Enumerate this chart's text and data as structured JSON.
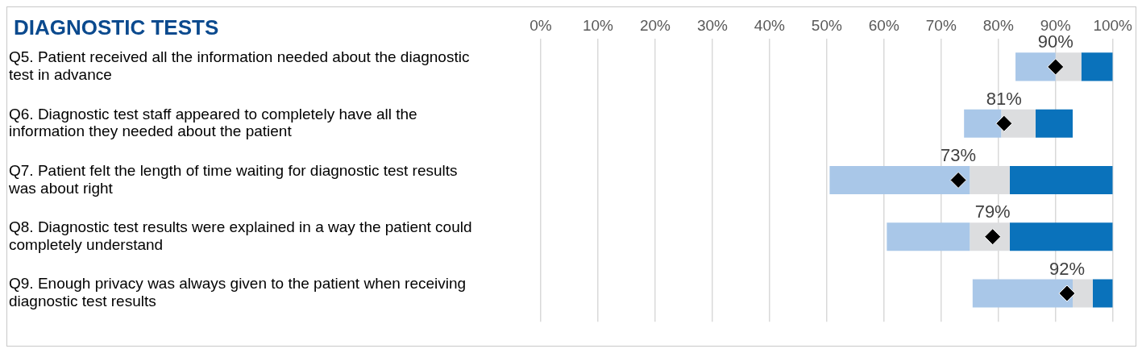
{
  "chart_data": {
    "type": "bar",
    "orientation": "horizontal",
    "title": "DIAGNOSTIC TESTS",
    "categories": [
      "Q5. Patient received all the information needed about the diagnostic test in advance",
      "Q6. Diagnostic test staff appeared to completely have all the information they needed about the patient",
      "Q7. Patient felt the length of time waiting for diagnostic test results was about right",
      "Q8. Diagnostic test results were explained in a way the patient could completely understand",
      "Q9. Enough privacy was always given to the patient when receiving diagnostic test results"
    ],
    "series": [
      {
        "color": "#a9c7e8",
        "base": [
          83,
          74,
          50.5,
          60.5,
          75.5
        ],
        "values": [
          7,
          6.5,
          24.5,
          14.5,
          17.5
        ]
      },
      {
        "color": "#dcdddf",
        "base": [
          90,
          80.5,
          75,
          75,
          93
        ],
        "values": [
          4.5,
          6,
          7,
          7,
          3.5
        ]
      },
      {
        "color": "#0a72bb",
        "base": [
          94.5,
          86.5,
          82,
          82,
          96.5
        ],
        "values": [
          5.5,
          6.5,
          18,
          18,
          3.5
        ]
      },
      {
        "type": "scatter",
        "color": "#000000",
        "marker": "diamond",
        "values": [
          90,
          81,
          73,
          79,
          92
        ],
        "value_labels": [
          "90%",
          "81%",
          "73%",
          "79%",
          "92%"
        ]
      }
    ],
    "xlim": [
      0,
      100
    ],
    "xticks": [
      {
        "value": 0,
        "label": "0%"
      },
      {
        "value": 10,
        "label": "10%"
      },
      {
        "value": 20,
        "label": "20%"
      },
      {
        "value": 30,
        "label": "30%"
      },
      {
        "value": 40,
        "label": "40%"
      },
      {
        "value": 50,
        "label": "50%"
      },
      {
        "value": 60,
        "label": "60%"
      },
      {
        "value": 70,
        "label": "70%"
      },
      {
        "value": 80,
        "label": "80%"
      },
      {
        "value": 90,
        "label": "90%"
      },
      {
        "value": 100,
        "label": "100%"
      }
    ],
    "grid": "x",
    "legend": false
  }
}
